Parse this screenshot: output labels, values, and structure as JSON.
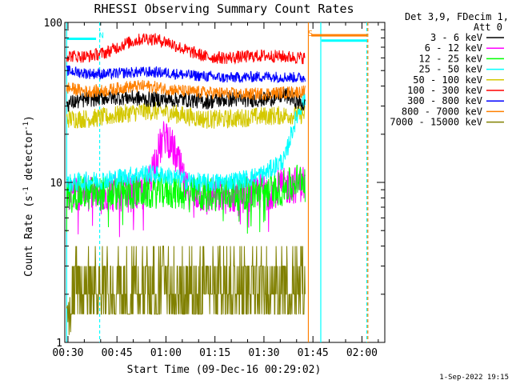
{
  "chart_data": {
    "type": "line",
    "title": "RHESSI Observing Summary Count Rates",
    "xlabel": "Start Time (09-Dec-16 00:29:02)",
    "ylabel": "Count Rate (s",
    "ylabel_sup": "-1",
    "ylabel_end": " detector",
    "ylabel_sup2": "-1",
    "ylabel_close": ")",
    "y_scale": "log",
    "ylim": [
      1,
      100
    ],
    "y_ticks": [
      {
        "v": 1,
        "label": "1"
      },
      {
        "v": 10,
        "label": "10"
      },
      {
        "v": 100,
        "label": "100"
      }
    ],
    "x_range_minutes": [
      29.03,
      127
    ],
    "x_ticks": [
      {
        "v": 30,
        "label": "00:30"
      },
      {
        "v": 45,
        "label": "00:45"
      },
      {
        "v": 60,
        "label": "01:00"
      },
      {
        "v": 75,
        "label": "01:15"
      },
      {
        "v": 90,
        "label": "01:30"
      },
      {
        "v": 105,
        "label": "01:45"
      },
      {
        "v": 120,
        "label": "02:00"
      }
    ],
    "legend_header": [
      "Det 3,9, FDecim 1,",
      "Att 0"
    ],
    "legend_position": "right",
    "series": [
      {
        "name": "3 - 6 keV",
        "color": "#000000",
        "level": [
          31,
          33,
          34,
          34,
          33,
          33,
          33,
          32,
          33,
          33,
          33,
          35,
          30
        ]
      },
      {
        "name": "6 - 12 keV",
        "color": "#ff00ff",
        "level": [
          8.6,
          8.8,
          8.5,
          8.5,
          8.7,
          20,
          9,
          8.3,
          8.3,
          8.5,
          8.8,
          9.4,
          10
        ]
      },
      {
        "name": "12 - 25 keV",
        "color": "#00ff00",
        "level": [
          8.5,
          8.6,
          8.5,
          8.6,
          8.8,
          8.8,
          8.6,
          8.5,
          8.5,
          8.6,
          8.8,
          9.3,
          11
        ]
      },
      {
        "name": "25 - 50 keV",
        "color": "#00ffff",
        "level": [
          9.8,
          10.2,
          10.4,
          10.9,
          11.4,
          11,
          10.3,
          9.9,
          10.1,
          10.5,
          11.4,
          14,
          34
        ]
      },
      {
        "name": "50 - 100 keV",
        "color": "#d4c800",
        "level": [
          25,
          25,
          25.6,
          27,
          28,
          27.5,
          26,
          24.8,
          24.8,
          25.4,
          26,
          26.3,
          26.5
        ]
      },
      {
        "name": "100 - 300 keV",
        "color": "#ff0000",
        "level": [
          62,
          61,
          65,
          74,
          80,
          76,
          67,
          61,
          60,
          61,
          62,
          61,
          60
        ]
      },
      {
        "name": "300 - 800 keV",
        "color": "#0000ff",
        "level": [
          50,
          48,
          47.5,
          48.5,
          49,
          48.5,
          47,
          46,
          45,
          45.5,
          46,
          45.5,
          45
        ]
      },
      {
        "name": "800 - 7000 keV",
        "color": "#ff8000",
        "level": [
          39,
          37,
          37.5,
          39.5,
          40,
          38.5,
          37,
          36.5,
          36,
          35.5,
          36,
          36.5,
          37
        ]
      },
      {
        "name": "7000 - 15000 keV",
        "color": "#808000",
        "level": [
          2,
          2.5,
          2.5,
          2.2,
          2.5,
          2.6,
          2.5,
          2.3,
          2.4,
          2.5,
          2.5,
          2.5,
          2.5
        ]
      }
    ],
    "markers": [
      {
        "label": "N",
        "color": "#00ffff",
        "x": 39.5,
        "y": 80
      },
      {
        "label": "S",
        "color": "#ff8000",
        "x": 103.5,
        "y": 82
      }
    ],
    "timestamp": "1-Sep-2022 19:15"
  }
}
